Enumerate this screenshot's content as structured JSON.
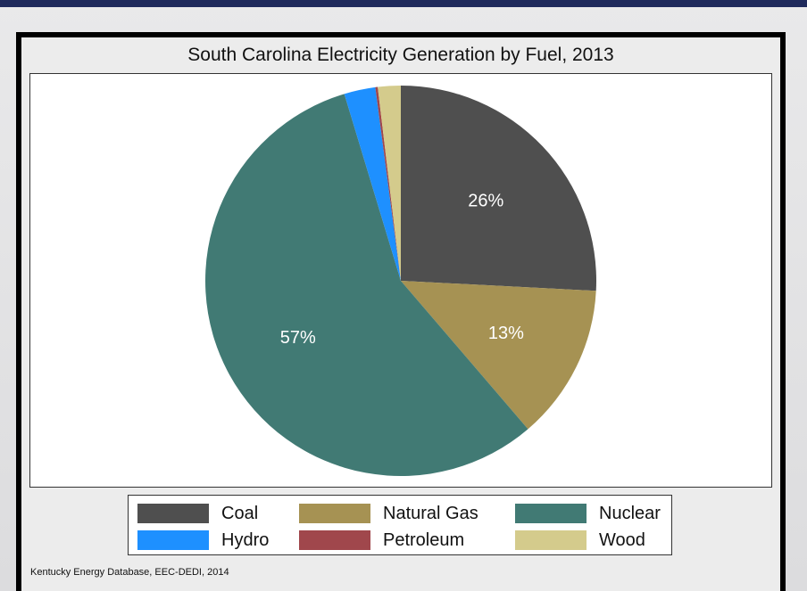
{
  "chart_data": {
    "type": "pie",
    "title": "South Carolina Electricity Generation by Fuel, 2013",
    "slices": [
      {
        "name": "Coal",
        "value": 26,
        "label": "26%",
        "color": "#4f4f4f"
      },
      {
        "name": "Natural Gas",
        "value": 13,
        "label": "13%",
        "color": "#a69253"
      },
      {
        "name": "Nuclear",
        "value": 57,
        "label": "57%",
        "color": "#417a74"
      },
      {
        "name": "Hydro",
        "value": 2.6,
        "label": "",
        "color": "#1e90ff"
      },
      {
        "name": "Petroleum",
        "value": 0.2,
        "label": "",
        "color": "#a0474c"
      },
      {
        "name": "Wood",
        "value": 1.9,
        "label": "",
        "color": "#d4cb8c"
      }
    ],
    "legend_position": "bottom"
  },
  "legend": [
    {
      "name": "Coal",
      "color": "#4f4f4f"
    },
    {
      "name": "Natural Gas",
      "color": "#a69253"
    },
    {
      "name": "Nuclear",
      "color": "#417a74"
    },
    {
      "name": "Hydro",
      "color": "#1e90ff"
    },
    {
      "name": "Petroleum",
      "color": "#a0474c"
    },
    {
      "name": "Wood",
      "color": "#d4cb8c"
    }
  ],
  "source": "Kentucky Energy Database, EEC-DEDI, 2014"
}
